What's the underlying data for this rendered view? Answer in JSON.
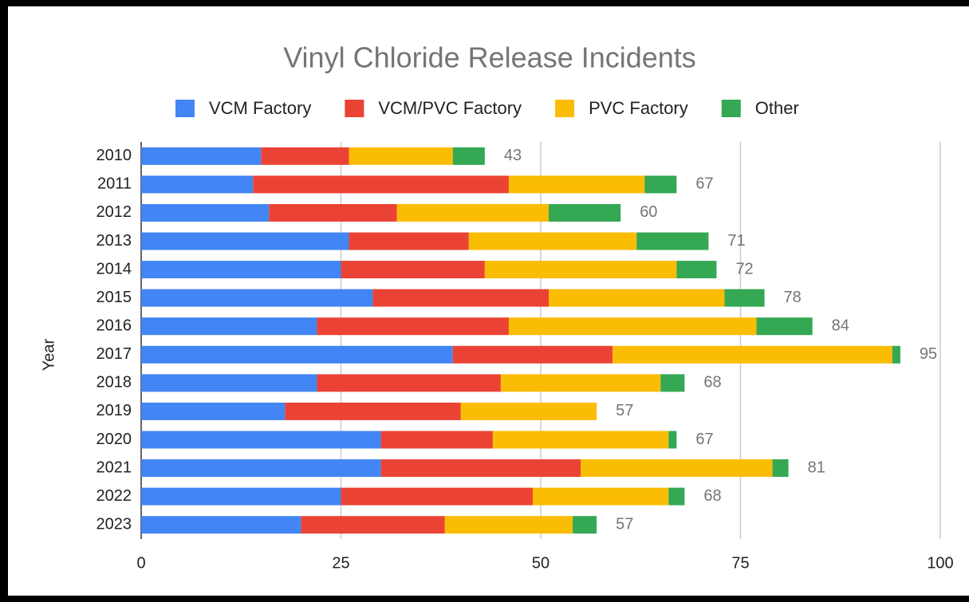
{
  "chart_data": {
    "type": "stacked-bar-horizontal",
    "title": "Vinyl Chloride Release Incidents",
    "y_label": "Year",
    "categories": [
      "2010",
      "2011",
      "2012",
      "2013",
      "2014",
      "2015",
      "2016",
      "2017",
      "2018",
      "2019",
      "2020",
      "2021",
      "2022",
      "2023"
    ],
    "series": [
      {
        "name": "VCM Factory",
        "color": "#4285f4",
        "values": [
          15,
          14,
          16,
          26,
          25,
          29,
          22,
          39,
          22,
          18,
          30,
          30,
          25,
          20
        ]
      },
      {
        "name": "VCM/PVC Factory",
        "color": "#ea4335",
        "values": [
          11,
          32,
          16,
          15,
          18,
          22,
          24,
          20,
          23,
          22,
          14,
          25,
          24,
          18
        ]
      },
      {
        "name": "PVC Factory",
        "color": "#fbbc04",
        "values": [
          13,
          17,
          19,
          21,
          24,
          22,
          31,
          35,
          20,
          17,
          22,
          24,
          17,
          16
        ]
      },
      {
        "name": "Other",
        "color": "#34a853",
        "values": [
          4,
          4,
          9,
          9,
          5,
          5,
          7,
          1,
          3,
          0,
          1,
          2,
          2,
          3
        ]
      }
    ],
    "totals": [
      43,
      67,
      60,
      71,
      72,
      78,
      84,
      95,
      68,
      57,
      67,
      81,
      68,
      57
    ],
    "xlim": [
      0,
      100
    ],
    "xticks": [
      0,
      25,
      50,
      75,
      100
    ],
    "grid": true,
    "legend": "top"
  }
}
